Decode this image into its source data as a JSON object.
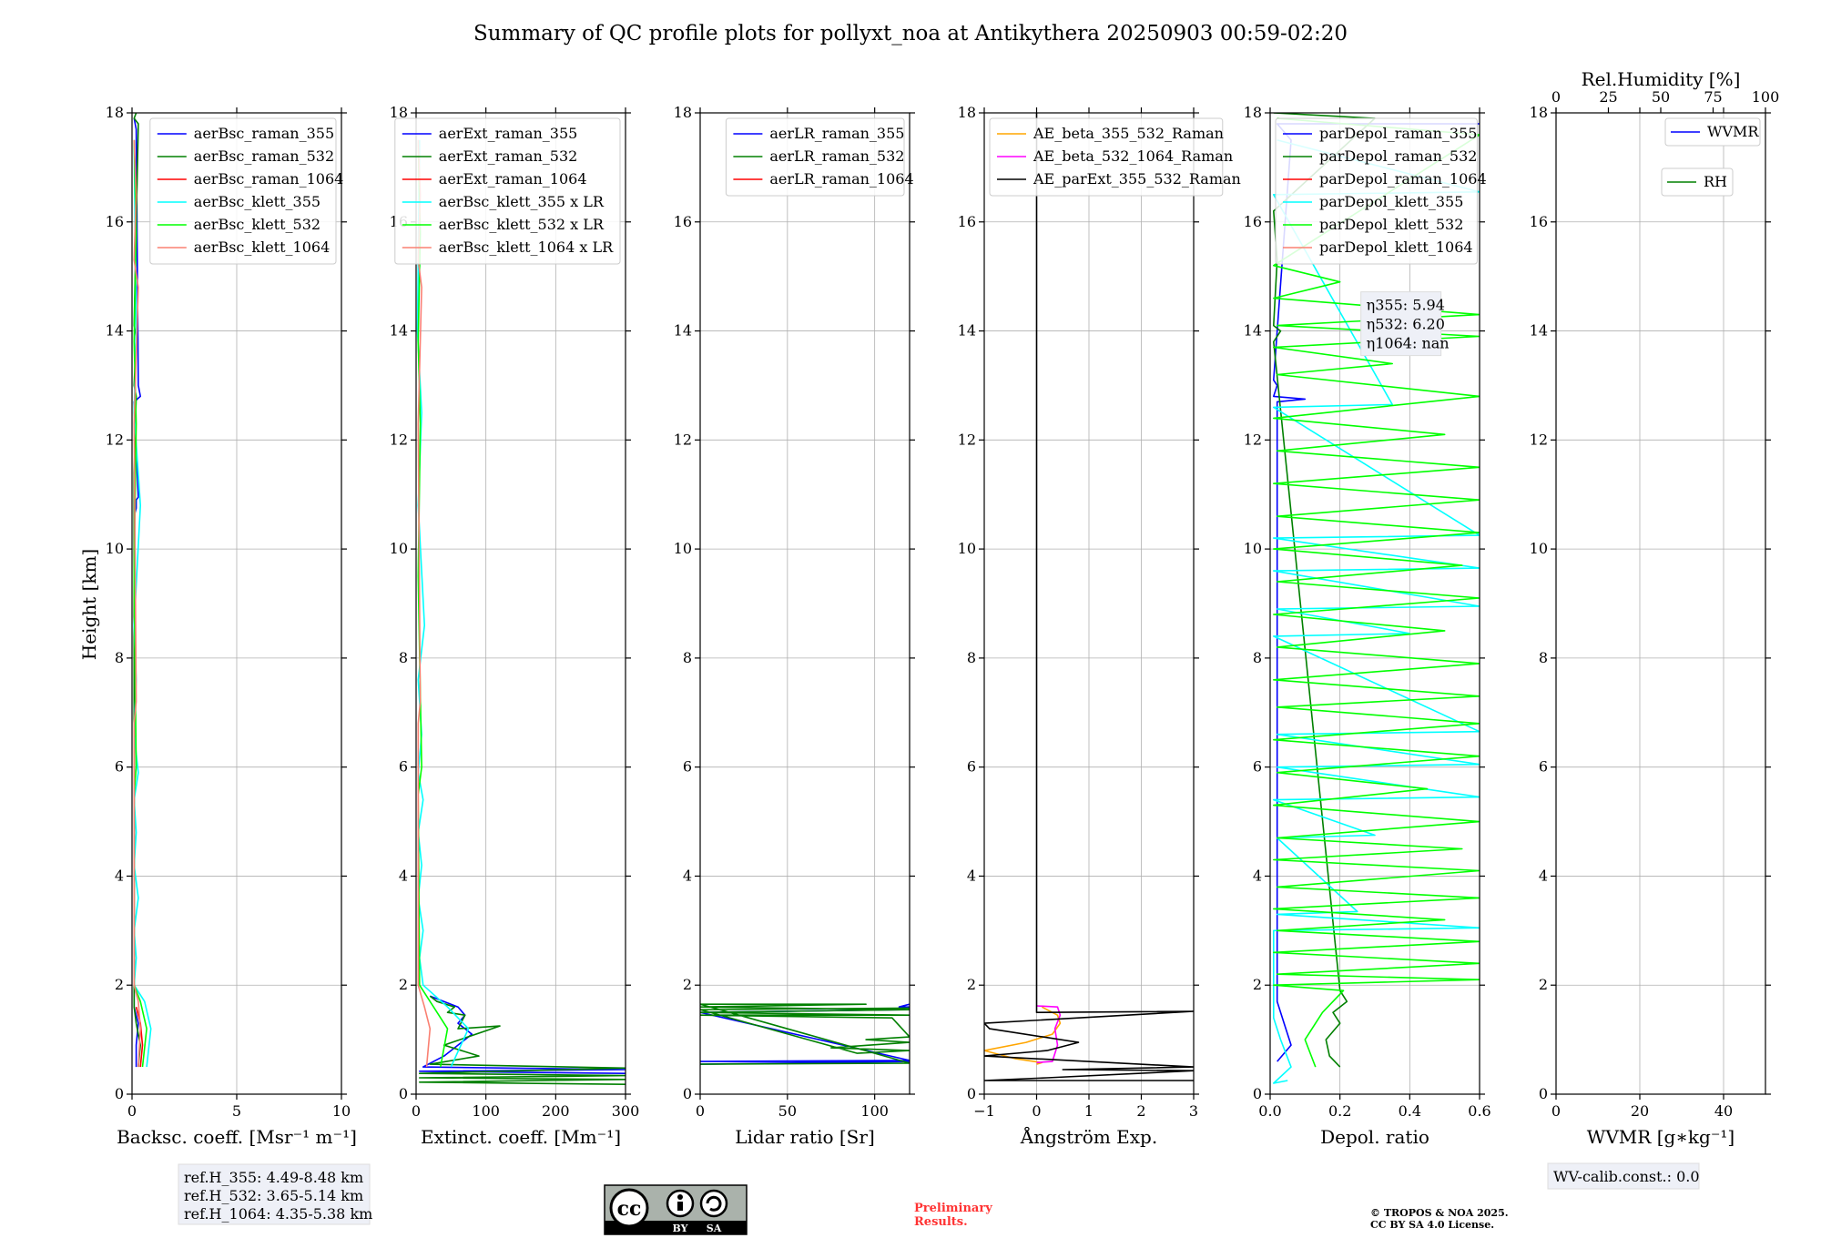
{
  "page": {
    "title": "Summary of QC profile plots for pollyxt_noa at Antikythera 20250903 00:59-02:20",
    "ylabel": "Height [km]",
    "ref_h": [
      "ref.H_355: 4.49-8.48 km",
      "ref.H_532: 3.65-5.14 km",
      "ref.H_1064: 4.35-5.38 km"
    ],
    "wv_calib": "WV-calib.const.: 0.0",
    "preliminary": [
      "Preliminary",
      "Results."
    ],
    "copyright": [
      "© TROPOS & NOA 2025.",
      "CC BY SA 4.0 License."
    ],
    "license_badge": [
      "cc",
      "BY",
      "SA"
    ],
    "colors": {
      "blue": "#0000ff",
      "green": "#008000",
      "red": "#ff0000",
      "cyan": "#00ffff",
      "lime": "#00ff00",
      "salmon": "#fa8072",
      "orange": "#ffa500",
      "magenta": "#ff00ff",
      "black": "#000000"
    }
  },
  "chart_data": [
    {
      "type": "line",
      "xlabel": "Backsc. coeff. [Msr⁻¹ m⁻¹]",
      "xlim": [
        0,
        10
      ],
      "xticks": [
        0,
        5,
        10
      ],
      "xtick_labels": [
        "0",
        "5",
        "10"
      ],
      "ylim": [
        0,
        18
      ],
      "yticks": [
        0,
        2,
        4,
        6,
        8,
        10,
        12,
        14,
        16,
        18
      ],
      "ytick_labels": [
        "0",
        "2",
        "4",
        "6",
        "8",
        "10",
        "12",
        "14",
        "16",
        "18"
      ],
      "legend": "top-right",
      "series": [
        {
          "name": "aerBsc_raman_355",
          "color": "blue",
          "x": [
            0.2,
            0.2,
            0.3,
            0.1,
            0.1,
            0.2,
            0.2,
            0.3,
            0.1,
            0.4,
            0.3,
            0.2,
            0.1
          ],
          "y": [
            0.5,
            0.9,
            1.3,
            1.6,
            10.6,
            10.75,
            10.9,
            10.95,
            12.7,
            12.8,
            13.0,
            17.7,
            17.9
          ]
        },
        {
          "name": "aerBsc_raman_532",
          "color": "green",
          "x": [
            0.3,
            0.4,
            0.2,
            0.1,
            0.1,
            0.2,
            0.1,
            0.2,
            0.1,
            0.3,
            0.1,
            0.2
          ],
          "y": [
            0.5,
            0.9,
            1.3,
            1.6,
            11.4,
            12.8,
            13.0,
            13.9,
            14.1,
            17.8,
            17.9,
            18.0
          ]
        },
        {
          "name": "aerBsc_raman_1064",
          "color": "red",
          "x": [
            0.4,
            0.5,
            0.4,
            0.2
          ],
          "y": [
            0.5,
            0.9,
            1.3,
            1.6
          ]
        },
        {
          "name": "aerBsc_klett_355",
          "color": "cyan",
          "x": [
            0.7,
            0.9,
            0.6,
            0.1,
            0.2,
            0.1,
            0.3,
            0.1,
            0.2,
            0.1,
            0.3,
            0.1,
            0.2,
            0.1,
            0.4,
            0.1,
            0.2,
            0.1
          ],
          "y": [
            0.5,
            1.2,
            1.7,
            2.0,
            2.5,
            3.0,
            3.6,
            4.2,
            4.8,
            5.4,
            5.9,
            6.6,
            7.6,
            8.6,
            10.8,
            12.5,
            14.0,
            17.5
          ]
        },
        {
          "name": "aerBsc_klett_532",
          "color": "lime",
          "x": [
            0.5,
            0.7,
            0.4,
            0.1,
            0.1,
            0.2,
            0.1,
            0.2,
            0.1,
            0.2,
            0.1
          ],
          "y": [
            0.5,
            1.2,
            1.7,
            2.0,
            5.5,
            6.0,
            9.5,
            12.3,
            13.8,
            15.8,
            17.5
          ]
        },
        {
          "name": "aerBsc_klett_1064",
          "color": "salmon",
          "x": [
            0.3,
            0.4,
            0.3,
            0.1,
            0.1,
            0.2,
            0.1,
            0.3,
            0.1,
            0.2,
            0.1
          ],
          "y": [
            0.5,
            1.2,
            1.7,
            2.0,
            6.8,
            7.2,
            12.3,
            14.8,
            15.3,
            16.5,
            17.5
          ]
        }
      ]
    },
    {
      "type": "line",
      "xlabel": "Extinct. coeff. [Mm⁻¹]",
      "xlim": [
        0,
        300
      ],
      "xticks": [
        0,
        100,
        200,
        300
      ],
      "xtick_labels": [
        "0",
        "100",
        "200",
        "300"
      ],
      "ylim": [
        0,
        18
      ],
      "yticks": [
        0,
        2,
        4,
        6,
        8,
        10,
        12,
        14,
        16,
        18
      ],
      "ytick_labels": [
        "0",
        "2",
        "4",
        "6",
        "8",
        "10",
        "12",
        "14",
        "16",
        "18"
      ],
      "legend": "top-right",
      "series": [
        {
          "name": "aerExt_raman_355",
          "color": "blue",
          "x": [
            300,
            5,
            300,
            10,
            40,
            60,
            80,
            60,
            70,
            60,
            40,
            20
          ],
          "y": [
            0.38,
            0.42,
            0.45,
            0.5,
            0.7,
            0.9,
            1.1,
            1.3,
            1.45,
            1.6,
            1.7,
            1.8
          ]
        },
        {
          "name": "aerExt_raman_532",
          "color": "green",
          "x": [
            300,
            5,
            300,
            5,
            300,
            5,
            300,
            20,
            90,
            40,
            120,
            60,
            70,
            45,
            55,
            30,
            20
          ],
          "y": [
            0.18,
            0.22,
            0.27,
            0.3,
            0.34,
            0.38,
            0.48,
            0.55,
            0.7,
            0.9,
            1.25,
            1.2,
            1.45,
            1.5,
            1.6,
            1.7,
            1.8
          ]
        },
        {
          "name": "aerExt_raman_1064",
          "color": "red",
          "x": [],
          "y": []
        },
        {
          "name": "aerBsc_klett_355 x LR",
          "color": "cyan",
          "x": [
            50,
            75,
            45,
            10,
            5,
            10,
            3,
            8,
            3,
            10,
            3,
            8,
            3,
            12,
            3,
            8,
            2,
            5
          ],
          "y": [
            0.5,
            1.2,
            1.6,
            2.0,
            2.5,
            3.0,
            3.6,
            4.2,
            4.8,
            5.4,
            5.9,
            6.6,
            7.6,
            8.6,
            10.8,
            12.5,
            14.0,
            17.5
          ]
        },
        {
          "name": "aerBsc_klett_532 x LR",
          "color": "lime",
          "x": [
            35,
            45,
            25,
            5,
            3,
            8,
            3,
            6,
            3,
            6,
            3
          ],
          "y": [
            0.5,
            1.2,
            1.6,
            2.0,
            5.5,
            6.0,
            9.5,
            12.3,
            13.8,
            15.8,
            17.5
          ]
        },
        {
          "name": "aerBsc_klett_1064 x LR",
          "color": "salmon",
          "x": [
            15,
            20,
            12,
            3,
            3,
            6,
            3,
            8,
            3,
            6,
            3
          ],
          "y": [
            0.5,
            1.2,
            1.6,
            2.0,
            6.8,
            7.2,
            12.3,
            14.8,
            15.3,
            16.5,
            17.5
          ]
        }
      ]
    },
    {
      "type": "line",
      "xlabel": "Lidar ratio [Sr]",
      "xlim": [
        0,
        120
      ],
      "xticks": [
        0,
        50,
        100
      ],
      "xtick_labels": [
        "0",
        "50",
        "100"
      ],
      "ylim": [
        0,
        18
      ],
      "yticks": [
        0,
        2,
        4,
        6,
        8,
        10,
        12,
        14,
        16,
        18
      ],
      "ytick_labels": [
        "0",
        "2",
        "4",
        "6",
        "8",
        "10",
        "12",
        "14",
        "16",
        "18"
      ],
      "legend": "top-right",
      "series": [
        {
          "name": "aerLR_raman_355",
          "color": "blue",
          "x": [
            0,
            120,
            0,
            120,
            0,
            114,
            120,
            114,
            120
          ],
          "y": [
            0.55,
            0.6,
            0.6,
            0.62,
            1.5,
            1.55,
            1.6,
            1.6,
            1.65
          ]
        },
        {
          "name": "aerLR_raman_532",
          "color": "green",
          "x": [
            0,
            120,
            0,
            95,
            0,
            120,
            0,
            120,
            0,
            110,
            120,
            95,
            120,
            75,
            120,
            90,
            0,
            120
          ],
          "y": [
            0.55,
            0.57,
            1.65,
            1.65,
            1.6,
            1.55,
            1.5,
            1.45,
            1.45,
            1.4,
            1.05,
            1.0,
            0.95,
            0.85,
            0.8,
            0.75,
            1.55,
            1.58
          ]
        },
        {
          "name": "aerLR_raman_1064",
          "color": "red",
          "x": [],
          "y": []
        }
      ]
    },
    {
      "type": "line",
      "xlabel": "Ångström Exp.",
      "xlim": [
        -1,
        3
      ],
      "xticks": [
        -1,
        0,
        1,
        2,
        3
      ],
      "xtick_labels": [
        "−1",
        "0",
        "1",
        "2",
        "3"
      ],
      "ylim": [
        0,
        18
      ],
      "yticks": [
        0,
        2,
        4,
        6,
        8,
        10,
        12,
        14,
        16,
        18
      ],
      "ytick_labels": [
        "0",
        "2",
        "4",
        "6",
        "8",
        "10",
        "12",
        "14",
        "16",
        "18"
      ],
      "legend": "top-left",
      "series": [
        {
          "name": "AE_beta_355_532_Raman",
          "color": "orange",
          "x": [
            0.1,
            0.4,
            0.45,
            0.3,
            -0.2,
            -1.0,
            -0.4,
            0.1,
            0.0
          ],
          "y": [
            1.6,
            1.45,
            1.3,
            1.1,
            0.95,
            0.8,
            0.65,
            0.58,
            0.55
          ]
        },
        {
          "name": "AE_beta_532_1064_Raman",
          "color": "magenta",
          "x": [
            0.0,
            0.4,
            0.45,
            0.35,
            0.4,
            0.3,
            0.0
          ],
          "y": [
            1.62,
            1.6,
            1.45,
            1.2,
            0.9,
            0.6,
            0.58
          ]
        },
        {
          "name": "AE_parExt_355_532_Raman",
          "color": "black",
          "x": [
            0,
            0,
            3,
            0.8,
            -1.0,
            -0.9,
            0.8,
            0.2,
            -1.0,
            3,
            0.5,
            3,
            0.2,
            -1.0,
            3
          ],
          "y": [
            18,
            1.5,
            1.52,
            1.4,
            1.3,
            1.2,
            0.95,
            0.8,
            0.7,
            0.5,
            0.45,
            0.43,
            0.3,
            0.25,
            0.25
          ]
        }
      ]
    },
    {
      "type": "line",
      "xlabel": "Depol. ratio",
      "xlim": [
        0,
        0.6
      ],
      "xticks": [
        0,
        0.2,
        0.4,
        0.6
      ],
      "xtick_labels": [
        "0.0",
        "0.2",
        "0.4",
        "0.6"
      ],
      "ylim": [
        0,
        18
      ],
      "yticks": [
        0,
        2,
        4,
        6,
        8,
        10,
        12,
        14,
        16,
        18
      ],
      "ytick_labels": [
        "0",
        "2",
        "4",
        "6",
        "8",
        "10",
        "12",
        "14",
        "16",
        "18"
      ],
      "legend": "top-left",
      "annotations": [
        "η355: 5.94",
        "η532: 6.20",
        "η1064: nan"
      ],
      "series": [
        {
          "name": "parDepol_raman_355",
          "color": "blue",
          "x": [
            0.02,
            0.06,
            0.04,
            0.02,
            0.02,
            0.1,
            0.01,
            0.02,
            0.01,
            0.06,
            0.02,
            0.6
          ],
          "y": [
            0.6,
            0.9,
            1.3,
            1.7,
            12.7,
            12.75,
            12.8,
            13.0,
            13.1,
            17.5,
            17.8,
            17.8
          ]
        },
        {
          "name": "parDepol_raman_532",
          "color": "green",
          "x": [
            0.2,
            0.17,
            0.16,
            0.2,
            0.18,
            0.22,
            0.2,
            0.01,
            0.03,
            0.01,
            0.02,
            0.01,
            0.3,
            0.01
          ],
          "y": [
            0.5,
            0.7,
            1.0,
            1.3,
            1.5,
            1.7,
            1.9,
            13.8,
            14.0,
            14.1,
            15.3,
            16.2,
            17.9,
            18.0
          ]
        },
        {
          "name": "parDepol_raman_1064",
          "color": "red",
          "x": [],
          "y": []
        },
        {
          "name": "parDepol_klett_355",
          "color": "cyan",
          "x": [
            0.05,
            0.01,
            0.06,
            0.03,
            0.01,
            0.01,
            0.6,
            0.02,
            0.25,
            0.02,
            0.3,
            0.01,
            0.6,
            0.02,
            0.6,
            0.02,
            0.6,
            0.01,
            0.4,
            0.02,
            0.6,
            0.01,
            0.6,
            0.01,
            0.6,
            0.01,
            0.35,
            0.01,
            0.6,
            0.02
          ],
          "y": [
            0.25,
            0.2,
            0.5,
            1.0,
            1.4,
            3.0,
            3.05,
            3.3,
            3.35,
            4.7,
            4.75,
            5.4,
            5.45,
            6.0,
            6.05,
            6.6,
            6.65,
            8.4,
            8.45,
            8.9,
            8.95,
            9.6,
            9.65,
            10.2,
            10.25,
            12.6,
            12.65,
            16.5,
            16.55,
            17.5
          ]
        },
        {
          "name": "parDepol_klett_532",
          "color": "lime",
          "x": [
            0.13,
            0.1,
            0.15,
            0.21,
            0.01,
            0.6,
            0.02,
            0.6,
            0.01,
            0.6,
            0.02,
            0.5,
            0.01,
            0.6,
            0.02,
            0.6,
            0.01,
            0.55,
            0.02,
            0.6,
            0.01,
            0.45,
            0.02,
            0.6,
            0.01,
            0.6,
            0.02,
            0.6,
            0.01,
            0.6,
            0.02,
            0.5,
            0.01,
            0.6,
            0.02,
            0.55,
            0.01,
            0.6,
            0.02,
            0.6,
            0.01,
            0.6,
            0.02,
            0.5,
            0.01,
            0.6,
            0.02,
            0.35,
            0.01,
            0.6,
            0.02,
            0.6,
            0.01,
            0.2,
            0.01,
            0.6,
            0.02
          ],
          "y": [
            0.5,
            1.0,
            1.5,
            1.9,
            2.0,
            2.1,
            2.2,
            2.4,
            2.6,
            2.8,
            3.0,
            3.2,
            3.4,
            3.6,
            3.8,
            4.1,
            4.3,
            4.5,
            4.7,
            5.0,
            5.3,
            5.6,
            5.9,
            6.2,
            6.5,
            6.8,
            7.1,
            7.3,
            7.6,
            7.9,
            8.2,
            8.5,
            8.8,
            9.1,
            9.4,
            9.7,
            10.0,
            10.3,
            10.6,
            10.9,
            11.2,
            11.5,
            11.8,
            12.1,
            12.4,
            12.8,
            13.2,
            13.4,
            13.7,
            13.9,
            14.1,
            14.3,
            14.6,
            14.9,
            15.2,
            17.6,
            17.9
          ]
        },
        {
          "name": "parDepol_klett_1064",
          "color": "salmon",
          "x": [],
          "y": []
        }
      ]
    },
    {
      "type": "line",
      "xlabel": "WVMR [g∗kg⁻¹]",
      "top_xlabel": "Rel.Humidity [%]",
      "xlim": [
        0,
        50
      ],
      "xticks": [
        0,
        20,
        40
      ],
      "xtick_labels": [
        "0",
        "20",
        "40"
      ],
      "top_xlim": [
        0,
        100
      ],
      "top_xticks": [
        0,
        25,
        50,
        75,
        100
      ],
      "top_xtick_labels": [
        "0",
        "25",
        "50",
        "75",
        "100"
      ],
      "ylim": [
        0,
        18
      ],
      "yticks": [
        0,
        2,
        4,
        6,
        8,
        10,
        12,
        14,
        16,
        18
      ],
      "ytick_labels": [
        "0",
        "2",
        "4",
        "6",
        "8",
        "10",
        "12",
        "14",
        "16",
        "18"
      ],
      "legend": "top-right",
      "series": [
        {
          "name": "WVMR",
          "color": "blue",
          "x": [],
          "y": []
        },
        {
          "name": "RH",
          "color": "green",
          "x": [],
          "y": []
        }
      ]
    }
  ]
}
